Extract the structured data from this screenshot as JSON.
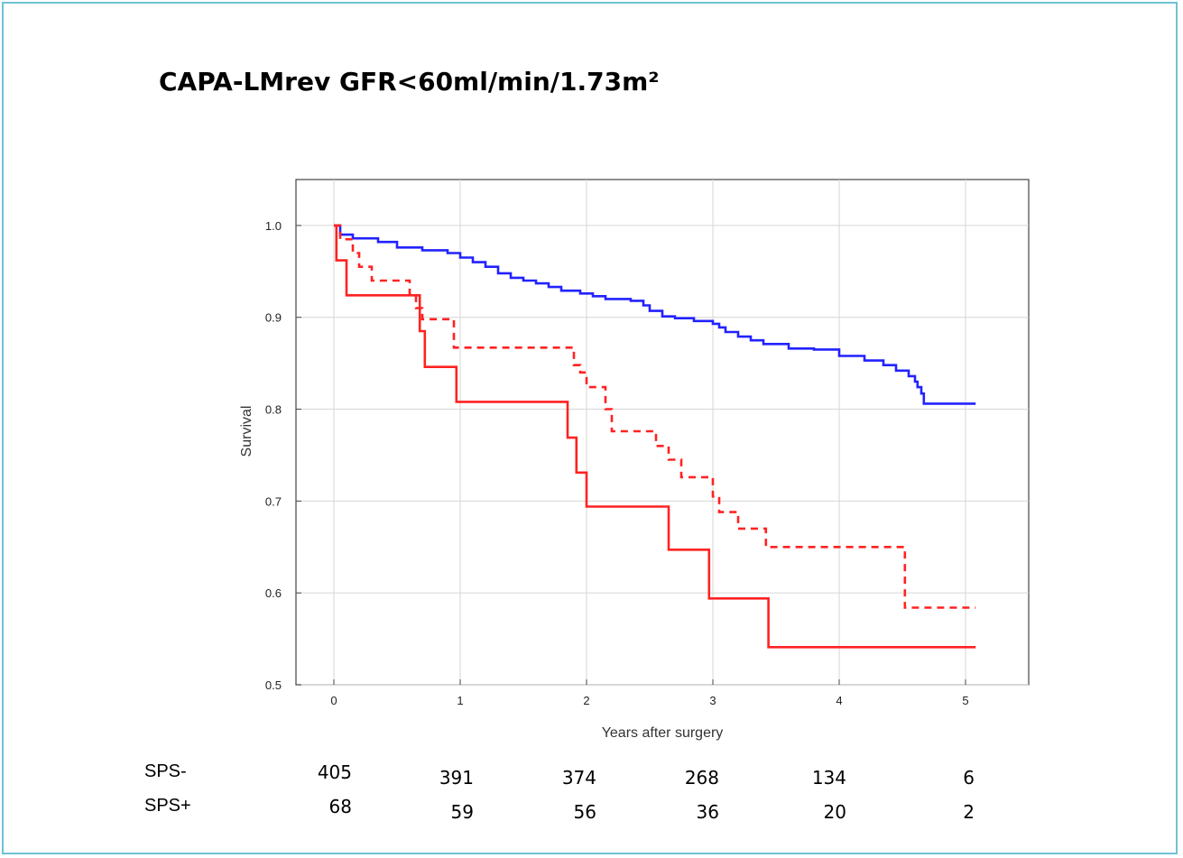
{
  "title": "CAPA-LMrev GFR<60ml/min/1.73m²",
  "chart_data": {
    "type": "line",
    "title": "CAPA-LMrev GFR<60ml/min/1.73m²",
    "xlabel": "Years after surgery",
    "ylabel": "Survival",
    "xlim": [
      -0.3,
      5.5
    ],
    "ylim": [
      0.5,
      1.05
    ],
    "xticks": [
      "0",
      "1",
      "2",
      "3",
      "4",
      "5"
    ],
    "yticks": [
      "0.5",
      "0.6",
      "0.7",
      "0.8",
      "0.9",
      "1.0"
    ],
    "grid": true,
    "series": [
      {
        "color": "#2222ff",
        "style": "solid",
        "points": [
          [
            0,
            1.0
          ],
          [
            0.05,
            0.99
          ],
          [
            0.15,
            0.986
          ],
          [
            0.35,
            0.982
          ],
          [
            0.5,
            0.976
          ],
          [
            0.7,
            0.973
          ],
          [
            0.9,
            0.97
          ],
          [
            1.0,
            0.965
          ],
          [
            1.1,
            0.96
          ],
          [
            1.2,
            0.955
          ],
          [
            1.3,
            0.948
          ],
          [
            1.4,
            0.943
          ],
          [
            1.5,
            0.94
          ],
          [
            1.6,
            0.937
          ],
          [
            1.7,
            0.933
          ],
          [
            1.8,
            0.929
          ],
          [
            1.95,
            0.926
          ],
          [
            2.05,
            0.923
          ],
          [
            2.15,
            0.92
          ],
          [
            2.35,
            0.918
          ],
          [
            2.45,
            0.913
          ],
          [
            2.5,
            0.907
          ],
          [
            2.6,
            0.901
          ],
          [
            2.7,
            0.899
          ],
          [
            2.85,
            0.896
          ],
          [
            3.0,
            0.893
          ],
          [
            3.05,
            0.889
          ],
          [
            3.1,
            0.884
          ],
          [
            3.2,
            0.879
          ],
          [
            3.3,
            0.875
          ],
          [
            3.4,
            0.871
          ],
          [
            3.6,
            0.866
          ],
          [
            3.8,
            0.865
          ],
          [
            4.0,
            0.858
          ],
          [
            4.2,
            0.853
          ],
          [
            4.35,
            0.848
          ],
          [
            4.45,
            0.842
          ],
          [
            4.55,
            0.836
          ],
          [
            4.6,
            0.83
          ],
          [
            4.62,
            0.824
          ],
          [
            4.65,
            0.817
          ],
          [
            4.67,
            0.806
          ],
          [
            5.08,
            0.806
          ]
        ]
      },
      {
        "color": "#ff2222",
        "style": "dashed",
        "points": [
          [
            0,
            1.0
          ],
          [
            0.05,
            0.985
          ],
          [
            0.15,
            0.97
          ],
          [
            0.2,
            0.955
          ],
          [
            0.3,
            0.94
          ],
          [
            0.5,
            0.94
          ],
          [
            0.6,
            0.925
          ],
          [
            0.65,
            0.91
          ],
          [
            0.7,
            0.898
          ],
          [
            0.9,
            0.898
          ],
          [
            0.95,
            0.867
          ],
          [
            1.85,
            0.867
          ],
          [
            1.9,
            0.848
          ],
          [
            1.95,
            0.84
          ],
          [
            2.0,
            0.824
          ],
          [
            2.15,
            0.8
          ],
          [
            2.2,
            0.776
          ],
          [
            2.5,
            0.776
          ],
          [
            2.55,
            0.76
          ],
          [
            2.65,
            0.745
          ],
          [
            2.75,
            0.726
          ],
          [
            2.95,
            0.726
          ],
          [
            3.0,
            0.705
          ],
          [
            3.05,
            0.688
          ],
          [
            3.2,
            0.67
          ],
          [
            3.4,
            0.67
          ],
          [
            3.42,
            0.65
          ],
          [
            4.5,
            0.65
          ],
          [
            4.52,
            0.584
          ],
          [
            5.08,
            0.584
          ]
        ]
      },
      {
        "color": "#ff2222",
        "style": "solid",
        "points": [
          [
            0,
            1.0
          ],
          [
            0.02,
            0.962
          ],
          [
            0.1,
            0.924
          ],
          [
            0.65,
            0.924
          ],
          [
            0.68,
            0.885
          ],
          [
            0.72,
            0.846
          ],
          [
            0.95,
            0.846
          ],
          [
            0.97,
            0.808
          ],
          [
            1.83,
            0.808
          ],
          [
            1.85,
            0.769
          ],
          [
            1.92,
            0.731
          ],
          [
            2.0,
            0.694
          ],
          [
            2.62,
            0.694
          ],
          [
            2.65,
            0.647
          ],
          [
            2.95,
            0.647
          ],
          [
            2.97,
            0.594
          ],
          [
            3.42,
            0.594
          ],
          [
            3.44,
            0.541
          ],
          [
            5.08,
            0.541
          ]
        ]
      }
    ]
  },
  "risk_table": {
    "rows": [
      {
        "label": "SPS-",
        "values": [
          "405",
          "391",
          "374",
          "268",
          "134",
          "6"
        ]
      },
      {
        "label": "SPS+",
        "values": [
          "68",
          "59",
          "56",
          "36",
          "20",
          "2"
        ]
      }
    ]
  }
}
